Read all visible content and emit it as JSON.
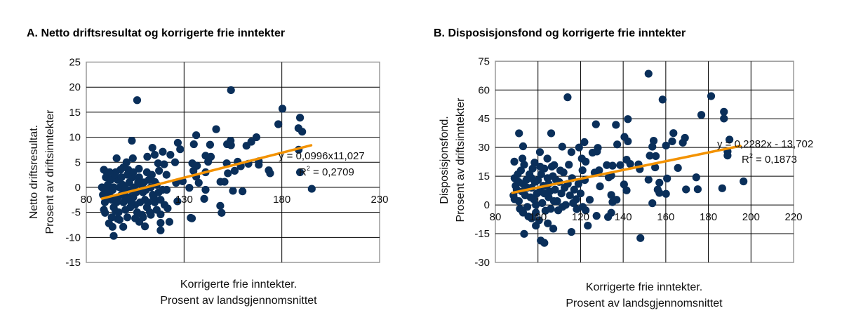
{
  "colors": {
    "points": "#0a2f5a",
    "trendline": "#f39200",
    "grid": "#000000",
    "border": "#9a9a9a"
  },
  "chart_data": [
    {
      "type": "scatter",
      "title": "A.  Netto driftsresultat og korrigerte frie inntekter",
      "xlabel": [
        "Korrigerte frie inntekter.",
        "Prosent av landsgjennomsnittet"
      ],
      "ylabel": [
        "Netto driftsresultat.",
        "Prosent av driftsinntekter"
      ],
      "xlim": [
        80,
        230
      ],
      "ylim": [
        -15,
        25
      ],
      "xticks": [
        "80",
        "130",
        "180",
        "230"
      ],
      "yticks": [
        "-15",
        "-10",
        "-5",
        "0",
        "5",
        "10",
        "15",
        "20",
        "25"
      ],
      "xtick_values": [
        80,
        130,
        180,
        230
      ],
      "ytick_values": [
        -15,
        -10,
        -5,
        0,
        5,
        10,
        15,
        20,
        25
      ],
      "grid": true,
      "trendline": {
        "slope": 0.0996,
        "intercept": -11.027,
        "x_range": [
          88,
          195
        ],
        "equation": "y = 0,0996x11,027",
        "r2_label": "R",
        "r2_sup": "2",
        "r2_value": " = 0,2709"
      },
      "points": [
        [
          106,
          17.4
        ],
        [
          154,
          19.4
        ],
        [
          180.3,
          15.7
        ],
        [
          178.2,
          12.6
        ],
        [
          189.3,
          13.9
        ],
        [
          188.5,
          11.8
        ],
        [
          190.4,
          11.1
        ],
        [
          188.6,
          7.5
        ],
        [
          189.3,
          3.0
        ],
        [
          195.3,
          -0.3
        ],
        [
          146.4,
          11.6
        ],
        [
          136.2,
          10.4
        ],
        [
          135,
          8.6
        ],
        [
          143.3,
          8.5
        ],
        [
          103.3,
          9.3
        ],
        [
          113.8,
          7.9
        ],
        [
          126.8,
          8.9
        ],
        [
          128,
          7.6
        ],
        [
          167,
          10
        ],
        [
          164.4,
          9.1
        ],
        [
          161.9,
          8.3
        ],
        [
          152,
          8.6
        ],
        [
          153.8,
          9.3
        ],
        [
          154,
          8.4
        ],
        [
          168.2,
          5.2
        ],
        [
          168.2,
          4.5
        ],
        [
          173.3,
          3.4
        ],
        [
          174,
          2.8
        ],
        [
          162.9,
          4.7
        ],
        [
          159,
          4.2
        ],
        [
          157.4,
          5.1
        ],
        [
          151.8,
          4.8
        ],
        [
          155.9,
          3.3
        ],
        [
          152.4,
          2.8
        ],
        [
          148.6,
          1.1
        ],
        [
          150.7,
          1.1
        ],
        [
          155,
          -0.7
        ],
        [
          159.9,
          -0.8
        ],
        [
          148.5,
          -3.7
        ],
        [
          149.2,
          -5.1
        ],
        [
          140.3,
          -2.3
        ],
        [
          141,
          -0.5
        ],
        [
          141,
          3
        ],
        [
          142.3,
          5.1
        ],
        [
          143.7,
          6.1
        ],
        [
          141,
          6.3
        ],
        [
          134.2,
          4.8
        ],
        [
          136.6,
          4.3
        ],
        [
          134.8,
          3.3
        ],
        [
          132.7,
          -0.1
        ],
        [
          133.4,
          -6.1
        ],
        [
          134,
          -6.2
        ],
        [
          136.2,
          2.1
        ],
        [
          137.5,
          0.9
        ],
        [
          122.5,
          -6.9
        ],
        [
          118,
          -8.6
        ],
        [
          118,
          -7.1
        ],
        [
          110,
          -7.8
        ],
        [
          107.1,
          -6.9
        ],
        [
          98.9,
          -7.9
        ],
        [
          94,
          -9.7
        ],
        [
          93.4,
          -7.9
        ],
        [
          96,
          -6.3
        ],
        [
          91.6,
          -7.2
        ],
        [
          89.6,
          -5.1
        ],
        [
          95.5,
          5.8
        ],
        [
          103.8,
          5.8
        ],
        [
          100.6,
          5
        ],
        [
          106.9,
          3.7
        ],
        [
          111.2,
          6.1
        ],
        [
          115,
          6.5
        ],
        [
          119.1,
          7.1
        ],
        [
          123,
          6.5
        ],
        [
          125.4,
          5
        ],
        [
          116.7,
          4.8
        ],
        [
          119.8,
          4.6
        ],
        [
          117.2,
          3.3
        ],
        [
          121,
          2.5
        ],
        [
          115,
          1.1
        ],
        [
          121.1,
          -0.5
        ],
        [
          121.6,
          -4.2
        ],
        [
          118,
          -5.4
        ],
        [
          126.6,
          -2.8
        ],
        [
          125.9,
          0.9
        ],
        [
          129.3,
          1.2
        ],
        [
          89,
          3.5
        ],
        [
          90,
          2
        ],
        [
          91,
          0.5
        ],
        [
          92,
          -1
        ],
        [
          93,
          -2.5
        ],
        [
          94,
          -4
        ],
        [
          95,
          3
        ],
        [
          96,
          1.5
        ],
        [
          97,
          0
        ],
        [
          98,
          -1.5
        ],
        [
          99,
          -3
        ],
        [
          100,
          -4.5
        ],
        [
          101,
          2.5
        ],
        [
          102,
          1
        ],
        [
          103,
          -0.5
        ],
        [
          104,
          -2
        ],
        [
          105,
          -3.5
        ],
        [
          106,
          -5
        ],
        [
          107,
          2
        ],
        [
          108,
          0.5
        ],
        [
          109,
          -1
        ],
        [
          110,
          -2.5
        ],
        [
          111,
          -4
        ],
        [
          112,
          1.5
        ],
        [
          113,
          0
        ],
        [
          114,
          -1.5
        ],
        [
          115,
          -3
        ],
        [
          116,
          -4.5
        ],
        [
          117,
          -1
        ],
        [
          118,
          -2.5
        ],
        [
          88.5,
          -1.5
        ],
        [
          89.5,
          -3
        ],
        [
          90.5,
          3
        ],
        [
          91.5,
          -2
        ],
        [
          92.5,
          1.5
        ],
        [
          93.5,
          -0.5
        ],
        [
          94.5,
          2.5
        ],
        [
          95.5,
          -3
        ],
        [
          96.5,
          -5
        ],
        [
          97.5,
          3.5
        ],
        [
          98.5,
          0.5
        ],
        [
          99.5,
          -1
        ],
        [
          100.5,
          -2.5
        ],
        [
          101.5,
          3.5
        ],
        [
          102.5,
          -4
        ],
        [
          103.5,
          2
        ],
        [
          104.5,
          0
        ],
        [
          105.5,
          -1
        ],
        [
          106.5,
          1
        ],
        [
          107.5,
          -3
        ],
        [
          108.5,
          -5.5
        ],
        [
          109.5,
          1
        ],
        [
          110.5,
          -0.5
        ],
        [
          111.5,
          -3
        ],
        [
          112.5,
          -5
        ],
        [
          113.5,
          2.5
        ],
        [
          114.5,
          -2
        ],
        [
          116,
          0.5
        ],
        [
          119,
          -0.5
        ],
        [
          120,
          -3.5
        ],
        [
          88,
          0
        ],
        [
          89,
          -4.5
        ],
        [
          90,
          -0.5
        ],
        [
          92,
          3
        ],
        [
          94,
          0
        ],
        [
          96,
          -2
        ],
        [
          98,
          2
        ],
        [
          100,
          -0.2
        ],
        [
          102,
          -2
        ],
        [
          104,
          3
        ],
        [
          93,
          -6
        ],
        [
          97,
          -6.5
        ],
        [
          101,
          -6
        ],
        [
          105,
          -6.2
        ],
        [
          109,
          -6
        ],
        [
          113,
          -5.5
        ],
        [
          111,
          3
        ],
        [
          99,
          4
        ],
        [
          95,
          -4.8
        ],
        [
          103,
          -3
        ]
      ]
    },
    {
      "type": "scatter",
      "title": "B.  Disposisjonsfond og korrigerte frie inntekter",
      "xlabel": [
        "Korrigerte frie inntekter.",
        "Prosent av landsgjennomsnittet"
      ],
      "ylabel": [
        "Disposisjonsfond.",
        "Prosent av driftsinntekter"
      ],
      "xlim": [
        80,
        220
      ],
      "ylim": [
        -30,
        75
      ],
      "xticks": [
        "80",
        "100",
        "120",
        "140",
        "160",
        "180",
        "200",
        "220"
      ],
      "yticks": [
        "-30",
        "-15",
        "0",
        "15",
        "30",
        "45",
        "60",
        "75"
      ],
      "xtick_values": [
        80,
        100,
        120,
        140,
        160,
        180,
        200,
        220
      ],
      "ytick_values": [
        -30,
        -15,
        0,
        15,
        30,
        45,
        60,
        75
      ],
      "grid": true,
      "trendline": {
        "slope": 0.2282,
        "intercept": -13.702,
        "x_range": [
          88,
          195
        ],
        "equation": "y = 0,2282x - 13,702",
        "r2_label": "R",
        "r2_sup": "2",
        "r2_value": " = 0,1873"
      },
      "points": [
        [
          151.9,
          68.5
        ],
        [
          113.9,
          56.2
        ],
        [
          181.3,
          56.8
        ],
        [
          158.5,
          55
        ],
        [
          176.7,
          47
        ],
        [
          187.3,
          48.6
        ],
        [
          187.3,
          45.1
        ],
        [
          142.2,
          44.8
        ],
        [
          127.2,
          42.1
        ],
        [
          136.6,
          41.8
        ],
        [
          163.6,
          37.5
        ],
        [
          163,
          33.2
        ],
        [
          169,
          35
        ],
        [
          168,
          32.5
        ],
        [
          189.9,
          34.1
        ],
        [
          189,
          27.9
        ],
        [
          189,
          25.8
        ],
        [
          196.5,
          12.3
        ],
        [
          186.5,
          8.7
        ],
        [
          174.3,
          14.4
        ],
        [
          175,
          8.2
        ],
        [
          169.5,
          8.1
        ],
        [
          165.7,
          19.3
        ],
        [
          160.1,
          31
        ],
        [
          154.3,
          33.5
        ],
        [
          153.7,
          30.4
        ],
        [
          152.5,
          25.7
        ],
        [
          155.3,
          25.5
        ],
        [
          155,
          19.6
        ],
        [
          151.9,
          13.2
        ],
        [
          153.7,
          0.9
        ],
        [
          160.6,
          13.8
        ],
        [
          157,
          11.6
        ],
        [
          156.2,
          8
        ],
        [
          157,
          6.3
        ],
        [
          160.1,
          5.8
        ],
        [
          148.1,
          -17.3
        ],
        [
          147.2,
          21.2
        ],
        [
          147.8,
          18.7
        ],
        [
          140.6,
          35.5
        ],
        [
          142.2,
          33.2
        ],
        [
          137.2,
          31.6
        ],
        [
          141.6,
          23.6
        ],
        [
          143.3,
          21.4
        ],
        [
          138.6,
          20.8
        ],
        [
          135,
          20.5
        ],
        [
          132.3,
          20.8
        ],
        [
          133.2,
          14.4
        ],
        [
          134.4,
          15.3
        ],
        [
          134.4,
          5.2
        ],
        [
          135,
          1.5
        ],
        [
          136.9,
          2.7
        ],
        [
          134.4,
          -4.1
        ],
        [
          132.9,
          -6.3
        ],
        [
          140.4,
          10.7
        ],
        [
          141.6,
          7.6
        ],
        [
          128.1,
          29.8
        ],
        [
          127.7,
          27.9
        ],
        [
          125.6,
          27.3
        ],
        [
          128.7,
          18.1
        ],
        [
          126.6,
          16.9
        ],
        [
          129.1,
          9.7
        ],
        [
          127.5,
          -5.7
        ],
        [
          123.4,
          -10.8
        ],
        [
          124.3,
          2.7
        ],
        [
          121.8,
          32.8
        ],
        [
          119.3,
          30
        ],
        [
          115.7,
          27.6
        ],
        [
          120.6,
          24.2
        ],
        [
          122.4,
          22.6
        ],
        [
          120.9,
          18.1
        ],
        [
          111.4,
          30.4
        ],
        [
          100.9,
          27.6
        ],
        [
          106.2,
          37.4
        ],
        [
          91.1,
          37.4
        ],
        [
          93,
          30.6
        ],
        [
          93.5,
          -15.1
        ],
        [
          101.3,
          -18.6
        ],
        [
          103,
          -19.8
        ],
        [
          115.7,
          -14.1
        ],
        [
          107.2,
          -12.4
        ],
        [
          104.4,
          24.2
        ],
        [
          107.6,
          20.8
        ],
        [
          104.6,
          -9.6
        ],
        [
          99,
          -10.8
        ],
        [
          109.5,
          -2.8
        ],
        [
          118.2,
          -2.2
        ],
        [
          122.4,
          -2.8
        ],
        [
          92.7,
          24.2
        ],
        [
          88.9,
          22.6
        ],
        [
          98.4,
          22.1
        ],
        [
          89,
          14
        ],
        [
          90,
          8
        ],
        [
          91,
          2
        ],
        [
          92,
          18
        ],
        [
          93,
          11
        ],
        [
          94,
          5
        ],
        [
          95,
          -1
        ],
        [
          96,
          16
        ],
        [
          97,
          9
        ],
        [
          98,
          3
        ],
        [
          99,
          -4
        ],
        [
          100,
          13
        ],
        [
          101,
          7
        ],
        [
          102,
          1
        ],
        [
          103,
          19
        ],
        [
          104,
          10
        ],
        [
          105,
          4
        ],
        [
          106,
          -2
        ],
        [
          107,
          15
        ],
        [
          108,
          8
        ],
        [
          109,
          2
        ],
        [
          110,
          12
        ],
        [
          111,
          6
        ],
        [
          112,
          17
        ],
        [
          113,
          0
        ],
        [
          114,
          11
        ],
        [
          115,
          5
        ],
        [
          116,
          14
        ],
        [
          117,
          8
        ],
        [
          118,
          3
        ],
        [
          88.5,
          5
        ],
        [
          89.5,
          10
        ],
        [
          90.5,
          16
        ],
        [
          91.5,
          -2
        ],
        [
          92.5,
          7
        ],
        [
          93.5,
          21
        ],
        [
          94.5,
          13
        ],
        [
          95.5,
          -6
        ],
        [
          96.5,
          4
        ],
        [
          97.5,
          19
        ],
        [
          98.5,
          12
        ],
        [
          99.5,
          6
        ],
        [
          100.5,
          -8
        ],
        [
          101.5,
          16
        ],
        [
          102.5,
          10
        ],
        [
          103.5,
          -3
        ],
        [
          104.5,
          14
        ],
        [
          105.5,
          7
        ],
        [
          106.5,
          20
        ],
        [
          107.5,
          2
        ],
        [
          108.5,
          13
        ],
        [
          110.5,
          18
        ],
        [
          111.5,
          -1
        ],
        [
          112.5,
          9
        ],
        [
          114.5,
          21
        ],
        [
          116.5,
          1
        ],
        [
          119,
          11
        ],
        [
          120,
          6
        ],
        [
          121,
          -1
        ],
        [
          122,
          13
        ],
        [
          89,
          3
        ],
        [
          91,
          12
        ],
        [
          93,
          -4
        ],
        [
          95,
          9
        ],
        [
          97,
          14
        ],
        [
          99,
          0
        ],
        [
          101,
          20
        ],
        [
          103,
          6
        ],
        [
          105,
          11
        ],
        [
          97,
          -7
        ]
      ]
    }
  ]
}
